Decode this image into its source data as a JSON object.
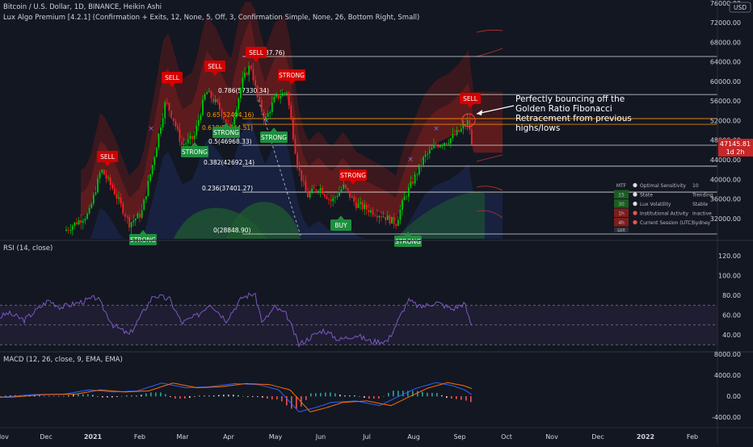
{
  "header": {
    "symbol_line": "Bitcoin / U.S. Dollar, 1D, BINANCE, Heikin Ashi",
    "indicator_line": "Lux Algo Premium [4.2.1] (Confirmation + Exits, 12, None, 5, Off, 3, Confirmation Simple, None, 26, Bottom Right, Small)"
  },
  "currency_label": "USD",
  "price_axis": {
    "labels": [
      "76000.00",
      "72000.00",
      "68000.00",
      "64000.00",
      "60000.00",
      "56000.00",
      "52000.00",
      "48000.00",
      "44000.00",
      "40000.00",
      "36000.00",
      "32000.00"
    ],
    "current_price": "47145.81",
    "countdown": "1d 2h"
  },
  "fib_levels": [
    {
      "label": "1(65087.76)",
      "value": 65087.76
    },
    {
      "label": "0.786(57330.34)",
      "value": 57330.34
    },
    {
      "label": "0.65(52404.16)",
      "value": 52404.16
    },
    {
      "label": "0.618(51244.51)",
      "value": 51244.51
    },
    {
      "label": "0.5(46968.33)",
      "value": 46968.33
    },
    {
      "label": "0.382(42692.14)",
      "value": 42692.14
    },
    {
      "label": "0.236(37401.27)",
      "value": 37401.27
    },
    {
      "label": "0(28848.90)",
      "value": 28848.9
    }
  ],
  "signals": {
    "sell": [
      "SELL",
      "SELL",
      "SELL",
      "SELL",
      "SELL"
    ],
    "strong": [
      "STRONG",
      "STRONG",
      "STRONG",
      "STRONG",
      "STRONG",
      "STRONG",
      "STRONG"
    ],
    "buy": [
      "BUY"
    ]
  },
  "annotation": [
    "Perfectly bouncing off the",
    "Golden Ratio Fibonacci",
    "Retracement from previous",
    "highs/lows"
  ],
  "dashboard": {
    "rows": [
      {
        "tf": "MTF",
        "label": "Optimal Sensitivity",
        "value": "10",
        "color": "#131722"
      },
      {
        "tf": "15",
        "label": "State",
        "value": "Trending",
        "color": "#1b5e20"
      },
      {
        "tf": "30",
        "label": "Lux Volatility",
        "value": "Stable",
        "color": "#1b5e20"
      },
      {
        "tf": "1h",
        "label": "Institutional Activity",
        "value": "Inactive",
        "color": "#7f1d1d"
      },
      {
        "tf": "4h",
        "label": "Current Session (UTC)",
        "value": "Sydney",
        "color": "#7f1d1d"
      }
    ],
    "logo": "LUX"
  },
  "rsi": {
    "title": "RSI (14, close)",
    "axis": [
      "120.00",
      "100.00",
      "80.00",
      "60.00",
      "40.00"
    ]
  },
  "macd": {
    "title": "MACD (12, 26, close, 9, EMA, EMA)",
    "axis": [
      "8000.00",
      "4000.00",
      "0.00",
      "-4000.00"
    ]
  },
  "time_axis": [
    "Nov",
    "Dec",
    "2021",
    "Feb",
    "Mar",
    "Apr",
    "May",
    "Jun",
    "Jul",
    "Aug",
    "Sep",
    "Oct",
    "Nov",
    "Dec",
    "2022",
    "Feb"
  ],
  "colors": {
    "bg": "#131722",
    "bull": "#00c805",
    "bear": "#ff1e1e",
    "sell_tag": "#d50000",
    "strong_tag": "#1e8e3e",
    "rsi_line": "#7e57c2",
    "macd_line": "#2962ff",
    "signal_line": "#ff6d00"
  }
}
